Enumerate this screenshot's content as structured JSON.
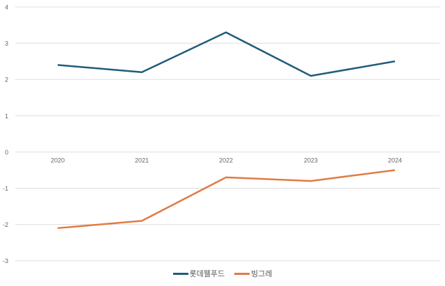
{
  "chart_data": {
    "type": "line",
    "title": "",
    "xlabel": "",
    "ylabel": "",
    "categories": [
      "2020",
      "2021",
      "2022",
      "2023",
      "2024"
    ],
    "series": [
      {
        "name": "롯데웰푸드",
        "color": "#1f5c7a",
        "values": [
          2.4,
          2.2,
          3.3,
          2.1,
          2.5
        ]
      },
      {
        "name": "빙그레",
        "color": "#e07b45",
        "values": [
          -2.1,
          -1.9,
          -0.7,
          -0.8,
          -0.5
        ]
      }
    ],
    "ylim": [
      -3,
      4
    ],
    "yticks": [
      "4",
      "3",
      "2",
      "1",
      "0",
      "-1",
      "-2",
      "-3"
    ],
    "grid": true,
    "legend_position": "bottom"
  },
  "legend": {
    "items": [
      {
        "label": "롯데웰푸드",
        "color": "#1f5c7a"
      },
      {
        "label": "빙그레",
        "color": "#e07b45"
      }
    ]
  }
}
